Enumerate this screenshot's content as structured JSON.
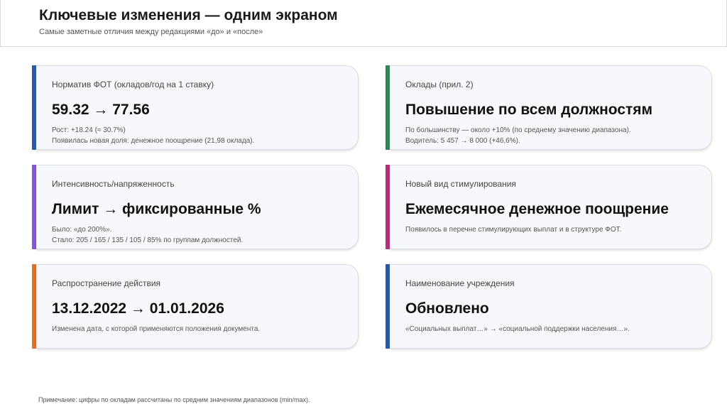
{
  "header": {
    "title": "Ключевые изменения — одним экраном",
    "subtitle": "Самые заметные отличия между редакциями «до» и «после»"
  },
  "cards": [
    {
      "label": "Норматив ФОТ (окладов/год на 1 ставку)",
      "value": "59.32 → 77.56",
      "details": [
        "Рост: +18.24 (≈ 30.7%)",
        "Появилась новая доля: денежное поощрение (21,98 оклада)."
      ],
      "accent": "#2b5ba8"
    },
    {
      "label": "Оклады (прил. 2)",
      "value": "Повышение по всем должностям",
      "details": [
        "По большинству — около +10% (по среднему значению диапазона).",
        "Водитель: 5 457 → 8 000 (+46,6%)."
      ],
      "accent": "#2e8656"
    },
    {
      "label": "Интенсивность/напряженность",
      "value": "Лимит → фиксированные %",
      "details": [
        "Было: «до 200%».",
        "Стало: 205 / 165 / 135 / 105 / 85% по группам должностей."
      ],
      "accent": "#8758d3"
    },
    {
      "label": "Новый вид стимулирования",
      "value": "Ежемесячное денежное поощрение",
      "details": [
        "Появилось в перечне стимулирующих выплат и в структуре ФОТ."
      ],
      "accent": "#b2307c"
    },
    {
      "label": "Распространение действия",
      "value": "13.12.2022 → 01.01.2026",
      "details": [
        "Изменена дата, с которой применяются положения документа."
      ],
      "accent": "#e0732a"
    },
    {
      "label": "Наименование учреждения",
      "value": "Обновлено",
      "details": [
        "«Социальных выплат…» → «социальной поддержки населения…»."
      ],
      "accent": "#2b5ba8"
    }
  ],
  "footer": {
    "note": "Примечание: цифры по окладам рассчитаны по средним значениям диапазонов (min/max)."
  }
}
